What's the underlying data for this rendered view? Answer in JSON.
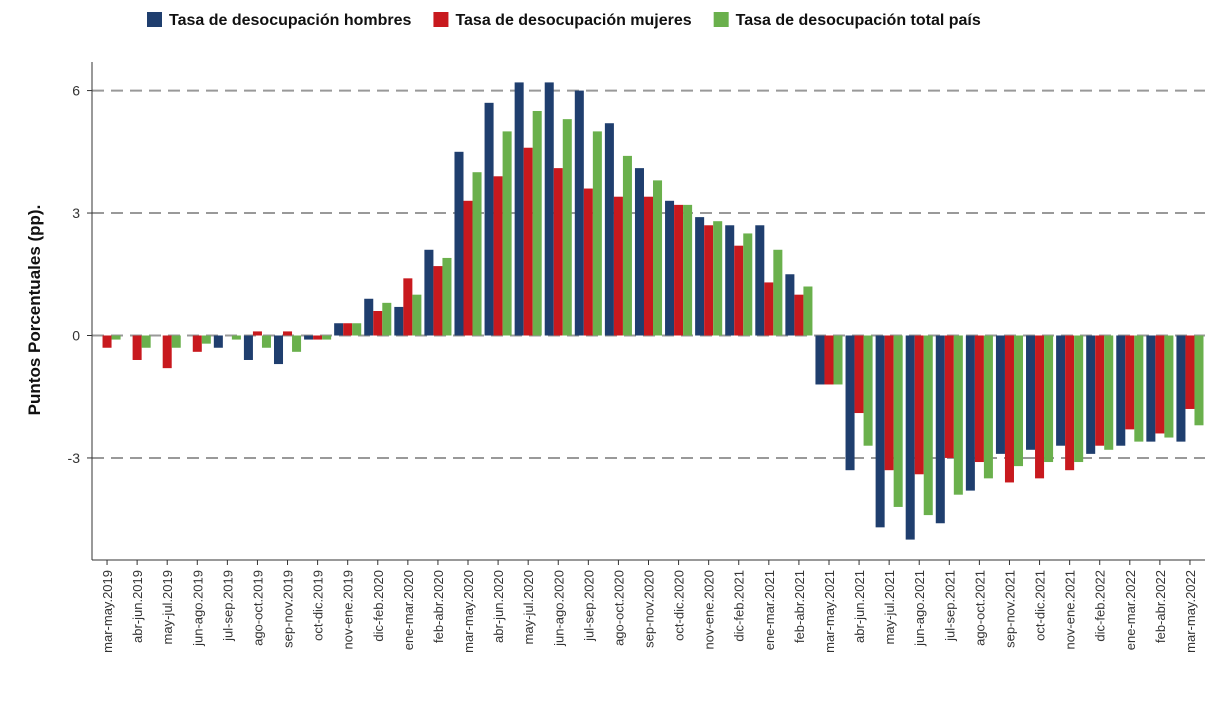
{
  "chart_data": {
    "type": "bar",
    "y_label": "Puntos Porcentuales (pp).",
    "categories": [
      "mar-may.2019",
      "abr-jun.2019",
      "may-jul.2019",
      "jun-ago.2019",
      "jul-sep.2019",
      "ago-oct.2019",
      "sep-nov.2019",
      "oct-dic.2019",
      "nov-ene.2019",
      "dic-feb.2020",
      "ene-mar.2020",
      "feb-abr.2020",
      "mar-may.2020",
      "abr-jun.2020",
      "may-jul.2020",
      "jun-ago.2020",
      "jul-sep.2020",
      "ago-oct.2020",
      "sep-nov.2020",
      "oct-dic.2020",
      "nov-ene.2020",
      "dic-feb.2021",
      "ene-mar.2021",
      "feb-abr.2021",
      "mar-may.2021",
      "abr-jun.2021",
      "may-jul.2021",
      "jun-ago.2021",
      "jul-sep.2021",
      "ago-oct.2021",
      "sep-nov.2021",
      "oct-dic.2021",
      "nov-ene.2021",
      "dic-feb.2022",
      "ene-mar.2022",
      "feb-abr.2022",
      "mar-may.2022"
    ],
    "series": [
      {
        "name": "Tasa de desocupación hombres",
        "color": "#1f3e6e",
        "values": [
          0,
          0,
          0,
          0,
          -0.3,
          -0.6,
          -0.7,
          -0.1,
          0.3,
          0.9,
          0.7,
          2.1,
          4.5,
          5.7,
          6.2,
          6.2,
          6.0,
          5.2,
          4.1,
          3.3,
          2.9,
          2.7,
          2.7,
          1.5,
          -1.2,
          -3.3,
          -4.7,
          -5.0,
          -4.6,
          -3.8,
          -2.9,
          -2.8,
          -2.7,
          -2.9,
          -2.7,
          -2.6,
          -2.6
        ]
      },
      {
        "name": "Tasa de desocupación mujeres",
        "color": "#c8191e",
        "values": [
          -0.3,
          -0.6,
          -0.8,
          -0.4,
          0,
          0.1,
          0.1,
          -0.1,
          0.3,
          0.6,
          1.4,
          1.7,
          3.3,
          3.9,
          4.6,
          4.1,
          3.6,
          3.4,
          3.4,
          3.2,
          2.7,
          2.2,
          1.3,
          1.0,
          -1.2,
          -1.9,
          -3.3,
          -3.4,
          -3.0,
          -3.1,
          -3.6,
          -3.5,
          -3.3,
          -2.7,
          -2.3,
          -2.4,
          -1.8
        ]
      },
      {
        "name": "Tasa de desocupación total país",
        "color": "#6ab04c",
        "values": [
          -0.1,
          -0.3,
          -0.3,
          -0.2,
          -0.1,
          -0.3,
          -0.4,
          -0.1,
          0.3,
          0.8,
          1.0,
          1.9,
          4.0,
          5.0,
          5.5,
          5.3,
          5.0,
          4.4,
          3.8,
          3.2,
          2.8,
          2.5,
          2.1,
          1.2,
          -1.2,
          -2.7,
          -4.2,
          -4.4,
          -3.9,
          -3.5,
          -3.2,
          -3.1,
          -3.1,
          -2.8,
          -2.6,
          -2.5,
          -2.2
        ]
      }
    ],
    "ylim": [
      -5.5,
      6.7
    ],
    "yticks": [
      -3,
      0,
      3,
      6
    ],
    "grid": true,
    "legend": "top"
  }
}
